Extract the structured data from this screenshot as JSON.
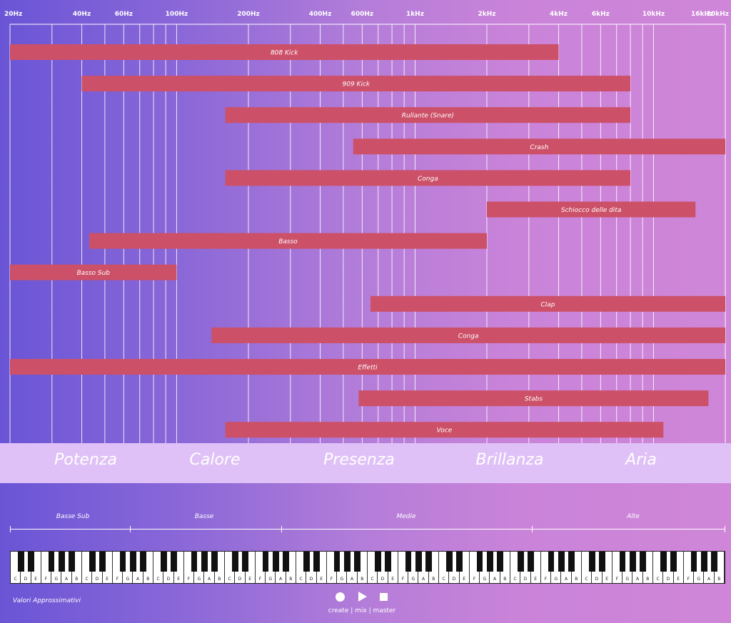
{
  "chart_data": {
    "type": "bar",
    "orientation": "horizontal",
    "x_scale": "log",
    "xlim": [
      20,
      20000
    ],
    "x_tick_labels": [
      {
        "freq": 20,
        "label": "20Hz"
      },
      {
        "freq": 40,
        "label": "40Hz"
      },
      {
        "freq": 60,
        "label": "60Hz"
      },
      {
        "freq": 100,
        "label": "100Hz"
      },
      {
        "freq": 200,
        "label": "200Hz"
      },
      {
        "freq": 400,
        "label": "400Hz"
      },
      {
        "freq": 600,
        "label": "600Hz"
      },
      {
        "freq": 1000,
        "label": "1kHz"
      },
      {
        "freq": 2000,
        "label": "2kHz"
      },
      {
        "freq": 4000,
        "label": "4kHz"
      },
      {
        "freq": 6000,
        "label": "6kHz"
      },
      {
        "freq": 10000,
        "label": "10kHz"
      },
      {
        "freq": 16000,
        "label": "16kHz"
      },
      {
        "freq": 20000,
        "label": "20kHz"
      }
    ],
    "grid": true,
    "bar_color": "#cc5068",
    "bars": [
      {
        "label": "808 Kick",
        "from": 20,
        "to": 4000
      },
      {
        "label": "909 Kick",
        "from": 40,
        "to": 8000
      },
      {
        "label": "Rullante (Snare)",
        "from": 160,
        "to": 8000
      },
      {
        "label": "Crash",
        "from": 550,
        "to": 20000
      },
      {
        "label": "Conga",
        "from": 160,
        "to": 8000
      },
      {
        "label": "Schiocco delle dita",
        "from": 2000,
        "to": 15000
      },
      {
        "label": "Basso",
        "from": 43,
        "to": 2000
      },
      {
        "label": "Basso Sub",
        "from": 20,
        "to": 100
      },
      {
        "label": "Clap",
        "from": 650,
        "to": 20000
      },
      {
        "label": "Conga",
        "from": 140,
        "to": 20000
      },
      {
        "label": "Effetti",
        "from": 20,
        "to": 20000
      },
      {
        "label": "Stabs",
        "from": 580,
        "to": 17000
      },
      {
        "label": "Voce",
        "from": 160,
        "to": 11000
      }
    ],
    "bands": [
      "Potenza",
      "Calore",
      "Presenza",
      "Brillanza",
      "Aria"
    ],
    "ranges": [
      {
        "label": "Basse Sub",
        "from": 20,
        "to": 60
      },
      {
        "label": "Basse",
        "from": 60,
        "to": 250
      },
      {
        "label": "Medie",
        "from": 250,
        "to": 4000
      },
      {
        "label": "Alte",
        "from": 4000,
        "to": 20000
      }
    ]
  },
  "keyboard": {
    "white_notes": [
      "C",
      "D",
      "E",
      "F",
      "G",
      "A",
      "B"
    ],
    "octaves": 10
  },
  "footer": {
    "note": "Valori Approssimativi",
    "brand": "create | mix | master",
    "icons": [
      "record-icon",
      "play-icon",
      "stop-icon"
    ]
  }
}
